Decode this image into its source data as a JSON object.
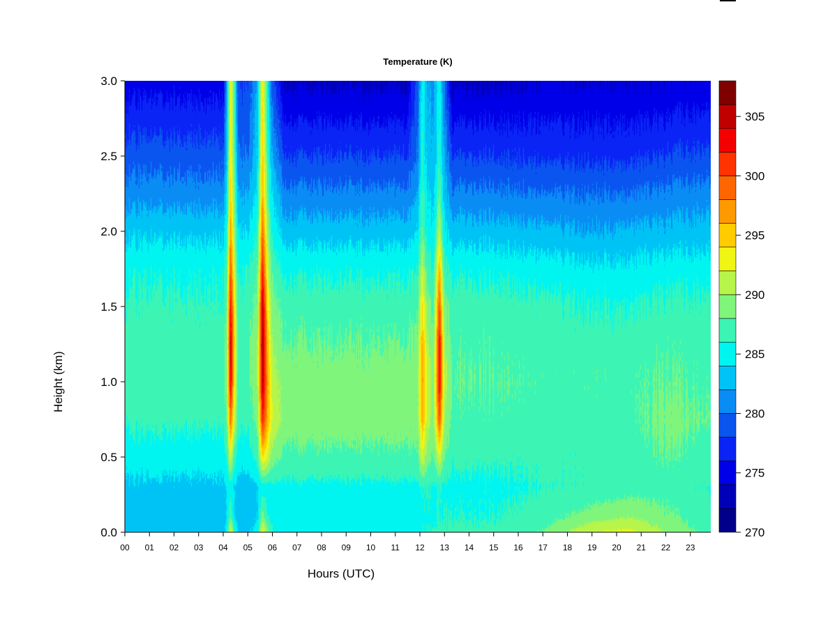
{
  "chart_data": {
    "type": "heatmap",
    "title": "Temperature (K)",
    "xlabel": "Hours (UTC)",
    "ylabel": "Height (km)",
    "xlim": [
      0,
      23.83
    ],
    "ylim": [
      0,
      3.0
    ],
    "xticks": [
      "00",
      "01",
      "02",
      "03",
      "04",
      "05",
      "06",
      "07",
      "08",
      "09",
      "10",
      "11",
      "12",
      "13",
      "14",
      "15",
      "16",
      "17",
      "18",
      "19",
      "20",
      "21",
      "22",
      "23"
    ],
    "yticks": [
      "0.0",
      "0.5",
      "1.0",
      "1.5",
      "2.0",
      "2.5",
      "3.0"
    ],
    "colorbar": {
      "ticks": [
        "270",
        "275",
        "280",
        "285",
        "290",
        "295",
        "300",
        "305"
      ],
      "levels": [
        270,
        272,
        274,
        276,
        278,
        280,
        282,
        284,
        286,
        288,
        290,
        292,
        294,
        296,
        298,
        300,
        302,
        304,
        306,
        308
      ],
      "colors": [
        "#00008B",
        "#0000B8",
        "#0000E8",
        "#0A24F5",
        "#0A55F0",
        "#0A8CF5",
        "#00C3F5",
        "#00F5F0",
        "#3CF5B4",
        "#80F57C",
        "#B8F54A",
        "#F0F514",
        "#FFCC00",
        "#FF9900",
        "#FF6600",
        "#FF3300",
        "#F50000",
        "#C00000",
        "#800000"
      ]
    },
    "x": [
      0,
      2,
      4,
      4.15,
      4.3,
      4.45,
      4.6,
      5.0,
      5.4,
      5.6,
      5.8,
      6.0,
      6.5,
      8,
      10,
      11.5,
      11.9,
      12.1,
      12.3,
      12.55,
      12.8,
      13.0,
      13.3,
      15,
      17,
      19,
      20.5,
      22,
      23.83
    ],
    "y": [
      0,
      0.1,
      0.3,
      0.5,
      0.75,
      1.0,
      1.25,
      1.5,
      1.75,
      2.0,
      2.25,
      2.5,
      3.0
    ],
    "z_by_x": [
      [
        283,
        283,
        283.5,
        285,
        286.5,
        287,
        287,
        286.5,
        285.5,
        283.5,
        281,
        279,
        275
      ],
      [
        283,
        283,
        283.5,
        285,
        286.5,
        287,
        287,
        286.5,
        285.5,
        283.5,
        281,
        279,
        275
      ],
      [
        283,
        283,
        283.5,
        285,
        286.5,
        287,
        287,
        286.5,
        285.5,
        283.5,
        281,
        279,
        275
      ],
      [
        285,
        284,
        284,
        286,
        288,
        289,
        289,
        288,
        287,
        285.5,
        284,
        283,
        282
      ],
      [
        293,
        288,
        285,
        292,
        299,
        304,
        305,
        303,
        300,
        297,
        295,
        294,
        294
      ],
      [
        287,
        284,
        284,
        287,
        292,
        294,
        295,
        294,
        292,
        290,
        289,
        288,
        287
      ],
      [
        283.5,
        283,
        283,
        285,
        286.5,
        287,
        287,
        286.5,
        285.5,
        284,
        282,
        280,
        278
      ],
      [
        283.5,
        283,
        283,
        285,
        286.5,
        287.5,
        287.5,
        287,
        286,
        284,
        282,
        280,
        278
      ],
      [
        285,
        284,
        284,
        287,
        289,
        290,
        290,
        289,
        288,
        286.5,
        285,
        284,
        283
      ],
      [
        293,
        289,
        285,
        294,
        302,
        305,
        306,
        305,
        302,
        299,
        296,
        295,
        294
      ],
      [
        289,
        286,
        285,
        292,
        296,
        297,
        296,
        294,
        292,
        290,
        288,
        287,
        285
      ],
      [
        286,
        285.5,
        285.5,
        289,
        292,
        291,
        290,
        289,
        287.5,
        285.5,
        284,
        282,
        279
      ],
      [
        285.5,
        285,
        285.5,
        287.5,
        289,
        289,
        288,
        287,
        285.5,
        283,
        280.5,
        278,
        273.5
      ],
      [
        285.5,
        285,
        285.5,
        287.5,
        289,
        289,
        288,
        287,
        285.5,
        283,
        280.5,
        278,
        273.5
      ],
      [
        285.5,
        285,
        285.5,
        287.5,
        289,
        289,
        288,
        287,
        285.5,
        283,
        280.5,
        278,
        273.5
      ],
      [
        285.5,
        285,
        285.5,
        287.5,
        289,
        289,
        288,
        287,
        285.5,
        283,
        280.5,
        278,
        273.5
      ],
      [
        285.5,
        285,
        285.5,
        287.5,
        289,
        289.5,
        288.5,
        287.5,
        286,
        284,
        282,
        280,
        279
      ],
      [
        286,
        285.5,
        286,
        292,
        296,
        297,
        296,
        294,
        291,
        288,
        287,
        286,
        285
      ],
      [
        286,
        285.5,
        286,
        289,
        291,
        291.5,
        290.5,
        289,
        287,
        285,
        284,
        283,
        282
      ],
      [
        286,
        285.5,
        285.5,
        287.5,
        289,
        289,
        288,
        287,
        285.5,
        284,
        283,
        282,
        281
      ],
      [
        286.5,
        286,
        286,
        292,
        300,
        303,
        303,
        300,
        296,
        291,
        288,
        286.5,
        285.5
      ],
      [
        286.5,
        286,
        285.5,
        288,
        290,
        291,
        290,
        288.5,
        286.5,
        284.5,
        283,
        282,
        280
      ],
      [
        286.5,
        286,
        285.5,
        286.5,
        287.5,
        288,
        287.5,
        287,
        285.5,
        283,
        280.5,
        278,
        273.5
      ],
      [
        286.5,
        286,
        285.5,
        286.5,
        287.5,
        288,
        287.5,
        287,
        285.5,
        283,
        280.5,
        278,
        273.5
      ],
      [
        288,
        287,
        286,
        286.5,
        287,
        287.5,
        287,
        286.5,
        285,
        282.5,
        280,
        277.5,
        274
      ],
      [
        292,
        289,
        286.5,
        286.5,
        287,
        287.5,
        287,
        286,
        284.5,
        282,
        280,
        277.5,
        274
      ],
      [
        292.5,
        290,
        287,
        287,
        287.5,
        287.5,
        287,
        286,
        284.5,
        282.5,
        280,
        277.5,
        274
      ],
      [
        290,
        288.5,
        287,
        288,
        288.5,
        288,
        287.5,
        286.5,
        285,
        282.5,
        280.5,
        278,
        274
      ],
      [
        287,
        286.5,
        286,
        287,
        288,
        287.5,
        287,
        286.5,
        285,
        283,
        281,
        278.5,
        274.5
      ]
    ],
    "grid": false,
    "legend": "colorbar-right"
  }
}
